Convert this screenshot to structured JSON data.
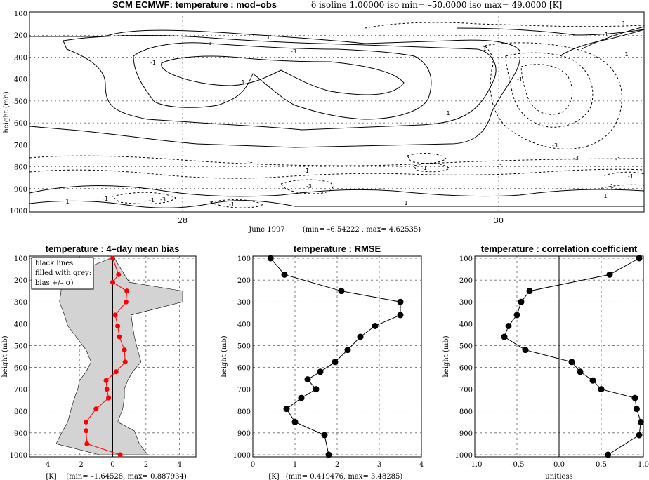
{
  "top": {
    "title_bold": "SCM ECMWF: temperature : mod–obs",
    "title_rest": "δ isoline 1.00000   iso min= –50.0000   iso max= 49.0000 [K]",
    "ylabel": "height (mb)",
    "yticks": [
      "100",
      "200",
      "300",
      "400",
      "500",
      "600",
      "700",
      "800",
      "900",
      "1000"
    ],
    "xticks": [
      "28",
      "30"
    ],
    "xlabel": "June 1997",
    "range_note": "(min= –6.54222 , max= 4.62535)"
  },
  "chart_data": [
    {
      "type": "contour",
      "title": "SCM ECMWF: temperature : mod–obs",
      "xlabel": "June 1997",
      "ylabel": "height (mb)",
      "ylim": [
        1000,
        100
      ],
      "x_ticks": [
        "28",
        "30"
      ],
      "contour_labels": [
        "1",
        "-1",
        "-3",
        "1",
        "-3",
        "1",
        "1",
        "-1",
        "-3",
        "-1",
        "-3",
        "-1",
        "-1",
        "-1",
        "1",
        "-1",
        "-1",
        "-3",
        "-1",
        "-1",
        "1",
        "-3",
        "-1",
        "-1",
        "1",
        "-1",
        "1",
        "1"
      ],
      "min": -6.54222,
      "max": 4.62535,
      "grid": true
    },
    {
      "type": "line",
      "title": "temperature : 4–day mean bias",
      "xlabel": "[K]",
      "ylabel": "height (mb)",
      "xlim": [
        -5,
        5
      ],
      "ylim": [
        1000,
        100
      ],
      "x_ticks": [
        "–4",
        "–2",
        "0",
        "2",
        "4"
      ],
      "y_ticks": [
        "100",
        "200",
        "300",
        "400",
        "500",
        "600",
        "700",
        "800",
        "900",
        "1000"
      ],
      "legend": [
        "black lines",
        "filled with grey:",
        "bias +/– σ)"
      ],
      "stats": "(min=   –1.64528, max=    0.887934)",
      "series": [
        {
          "y": [
            100,
            175,
            210,
            250,
            300,
            360,
            410,
            460,
            520,
            575,
            620,
            660,
            700,
            740,
            790,
            850,
            890,
            950,
            1000
          ],
          "x": [
            0,
            0.35,
            0,
            0.85,
            0.8,
            0.15,
            0.3,
            0.4,
            0.7,
            0.75,
            0.2,
            -0.4,
            -0.35,
            -0.25,
            -1.0,
            -1.6,
            -1.6,
            -1.55,
            0.45
          ]
        }
      ],
      "band": {
        "y": [
          100,
          175,
          210,
          250,
          300,
          360,
          410,
          460,
          520,
          575,
          620,
          660,
          700,
          740,
          790,
          850,
          890,
          950,
          1000
        ],
        "upper": [
          0.1,
          0.7,
          1.0,
          4.2,
          4.2,
          1.1,
          1.2,
          1.3,
          1.5,
          1.7,
          1.2,
          0.9,
          0.7,
          0.7,
          0.6,
          0.3,
          1.3,
          1.6,
          2.1
        ],
        "lower": [
          -0.1,
          -2.6,
          -3.1,
          -3.1,
          -3.2,
          -2.9,
          -2.7,
          -2.2,
          -1.6,
          -1.3,
          -1.6,
          -2.0,
          -2.1,
          -2.3,
          -2.5,
          -2.7,
          -3.0,
          -3.4,
          -0.8
        ]
      }
    },
    {
      "type": "line",
      "title": "temperature : RMSE",
      "xlabel": "[K]",
      "ylabel": "height (mb)",
      "xlim": [
        0,
        4
      ],
      "ylim": [
        1000,
        100
      ],
      "x_ticks": [
        "0",
        "1",
        "2",
        "3",
        "4"
      ],
      "y_ticks": [
        "100",
        "200",
        "300",
        "400",
        "500",
        "600",
        "700",
        "800",
        "900",
        "1000"
      ],
      "stats": "(min=    0.419476, max=      3.48285)",
      "series": [
        {
          "y": [
            100,
            175,
            250,
            300,
            360,
            410,
            460,
            520,
            575,
            620,
            655,
            700,
            740,
            790,
            850,
            910,
            1000
          ],
          "x": [
            0.42,
            0.75,
            2.1,
            3.5,
            3.5,
            2.9,
            2.55,
            2.25,
            1.95,
            1.6,
            1.3,
            1.5,
            1.15,
            0.8,
            1.0,
            1.7,
            1.8
          ]
        }
      ]
    },
    {
      "type": "line",
      "title": "temperature : correlation coefficient",
      "xlabel": "unitless",
      "ylabel": "height (mb)",
      "xlim": [
        -1,
        1
      ],
      "ylim": [
        1000,
        100
      ],
      "x_ticks": [
        "–1.0",
        "–0.5",
        "0.0",
        "0.5",
        "1.0"
      ],
      "y_ticks": [
        "100",
        "200",
        "300",
        "400",
        "500",
        "600",
        "700",
        "800",
        "900",
        "1000"
      ],
      "series": [
        {
          "y": [
            100,
            175,
            250,
            300,
            360,
            410,
            460,
            520,
            575,
            620,
            660,
            700,
            740,
            790,
            850,
            910,
            1000
          ],
          "x": [
            0.95,
            0.6,
            -0.35,
            -0.45,
            -0.5,
            -0.6,
            -0.65,
            -0.4,
            0.15,
            0.25,
            0.4,
            0.5,
            0.9,
            0.92,
            0.97,
            0.95,
            0.58
          ]
        }
      ]
    }
  ],
  "colors": {
    "band": "#d3d3d3",
    "bias_line": "#ff0000",
    "axis": "#000000"
  }
}
